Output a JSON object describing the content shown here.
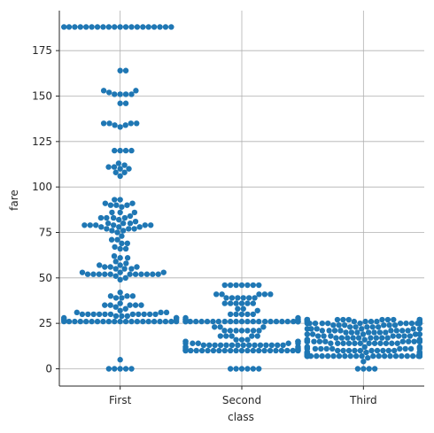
{
  "chart_data": {
    "type": "scatter",
    "subtype": "swarm",
    "xlabel": "class",
    "ylabel": "fare",
    "categories": [
      "First",
      "Second",
      "Third"
    ],
    "ylim": [
      -9.5,
      197
    ],
    "yticks": [
      0,
      25,
      50,
      75,
      100,
      125,
      150,
      175
    ],
    "grid": true,
    "color": "#1f77b4",
    "series": [
      {
        "category": "First",
        "values": [
          0,
          0,
          0,
          0,
          0,
          5,
          26,
          26,
          26,
          26,
          26,
          26,
          26,
          26,
          26,
          26,
          26,
          26,
          26,
          26,
          26,
          26,
          26,
          26,
          26,
          26,
          26,
          27,
          27,
          27,
          28,
          28,
          28,
          29,
          29,
          29,
          30,
          30,
          30,
          30,
          30,
          30,
          30,
          30,
          30,
          30,
          30,
          31,
          31,
          31,
          32,
          33,
          34,
          35,
          35,
          35,
          35,
          35,
          36,
          39,
          39,
          40,
          40,
          40,
          42,
          49,
          50,
          51,
          52,
          52,
          52,
          52,
          52,
          52,
          52,
          52,
          52,
          52,
          52,
          53,
          53,
          53,
          55,
          55,
          55,
          56,
          56,
          56,
          57,
          57,
          58,
          59,
          61,
          61,
          62,
          66,
          66,
          67,
          69,
          69,
          71,
          71,
          73,
          75,
          76,
          76,
          77,
          77,
          77,
          78,
          78,
          78,
          79,
          79,
          79,
          79,
          79,
          79,
          80,
          80,
          80,
          81,
          82,
          83,
          83,
          83,
          83,
          84,
          86,
          86,
          86,
          89,
          90,
          90,
          90,
          91,
          91,
          93,
          93,
          106,
          108,
          108,
          110,
          110,
          111,
          111,
          112,
          113,
          120,
          120,
          120,
          120,
          133,
          134,
          134,
          135,
          135,
          135,
          135,
          146,
          146,
          151,
          151,
          151,
          151,
          152,
          153,
          153,
          164,
          164,
          188,
          188,
          188,
          188,
          188,
          188,
          188,
          188,
          188,
          188,
          188,
          188,
          188,
          188,
          188,
          188,
          188,
          188,
          188,
          188
        ]
      },
      {
        "category": "Second",
        "values": [
          0,
          0,
          0,
          0,
          0,
          0,
          10,
          10,
          10,
          10,
          10,
          10,
          10,
          10,
          10,
          10,
          10,
          10,
          10,
          10,
          10,
          10,
          10,
          10,
          10,
          10,
          10,
          10,
          10,
          10,
          11,
          11,
          11,
          11,
          11,
          12,
          12,
          12,
          12,
          12,
          13,
          13,
          13,
          13,
          13,
          13,
          13,
          13,
          13,
          13,
          13,
          13,
          13,
          13,
          13,
          14,
          14,
          14,
          14,
          14,
          15,
          15,
          15,
          15,
          15,
          16,
          16,
          16,
          18,
          18,
          18,
          18,
          18,
          21,
          21,
          21,
          21,
          21,
          21,
          21,
          23,
          23,
          23,
          26,
          26,
          26,
          26,
          26,
          26,
          26,
          26,
          26,
          26,
          26,
          26,
          26,
          26,
          26,
          26,
          26,
          26,
          26,
          26,
          26,
          26,
          26,
          26,
          26,
          26,
          27,
          27,
          27,
          27,
          27,
          28,
          28,
          30,
          30,
          30,
          30,
          30,
          32,
          33,
          33,
          36,
          36,
          36,
          36,
          36,
          36,
          39,
          39,
          39,
          39,
          39,
          39,
          41,
          41,
          41,
          41,
          41,
          46,
          46,
          46,
          46,
          46,
          46,
          46
        ]
      },
      {
        "category": "Third",
        "values": [
          0,
          0,
          0,
          0,
          4,
          6,
          7,
          7,
          7,
          7,
          7,
          7,
          7,
          7,
          7,
          7,
          7,
          7,
          7,
          7,
          7,
          7,
          7,
          7,
          7,
          7,
          7,
          7,
          7,
          7,
          7,
          7,
          7,
          7,
          7,
          7,
          7,
          7,
          7,
          7,
          8,
          8,
          8,
          8,
          8,
          8,
          8,
          8,
          8,
          8,
          8,
          8,
          8,
          8,
          8,
          8,
          8,
          8,
          8,
          8,
          8,
          8,
          8,
          8,
          8,
          8,
          9,
          9,
          9,
          9,
          9,
          9,
          9,
          9,
          9,
          9,
          9,
          9,
          9,
          9,
          10,
          10,
          10,
          10,
          10,
          10,
          10,
          10,
          10,
          10,
          11,
          11,
          11,
          11,
          11,
          11,
          11,
          11,
          11,
          11,
          12,
          12,
          12,
          12,
          12,
          12,
          14,
          14,
          14,
          14,
          14,
          14,
          14,
          14,
          14,
          14,
          14,
          14,
          15,
          15,
          15,
          15,
          15,
          15,
          15,
          15,
          15,
          15,
          15,
          15,
          15,
          15,
          16,
          16,
          16,
          16,
          16,
          16,
          16,
          16,
          17,
          17,
          17,
          17,
          17,
          17,
          17,
          17,
          17,
          18,
          18,
          18,
          18,
          18,
          18,
          18,
          19,
          19,
          19,
          19,
          19,
          19,
          19,
          20,
          20,
          20,
          20,
          20,
          20,
          20,
          21,
          21,
          21,
          21,
          21,
          21,
          21,
          21,
          22,
          22,
          22,
          22,
          22,
          22,
          23,
          23,
          23,
          23,
          23,
          24,
          24,
          24,
          24,
          24,
          24,
          25,
          25,
          25,
          25,
          25,
          25,
          25,
          25,
          25,
          25,
          25,
          25,
          26,
          26,
          26,
          26,
          26,
          26,
          26,
          26,
          26,
          27,
          27,
          27,
          27,
          27,
          27,
          27,
          27,
          27,
          27,
          27,
          27,
          27,
          27,
          27,
          27,
          27,
          27
        ]
      }
    ]
  }
}
